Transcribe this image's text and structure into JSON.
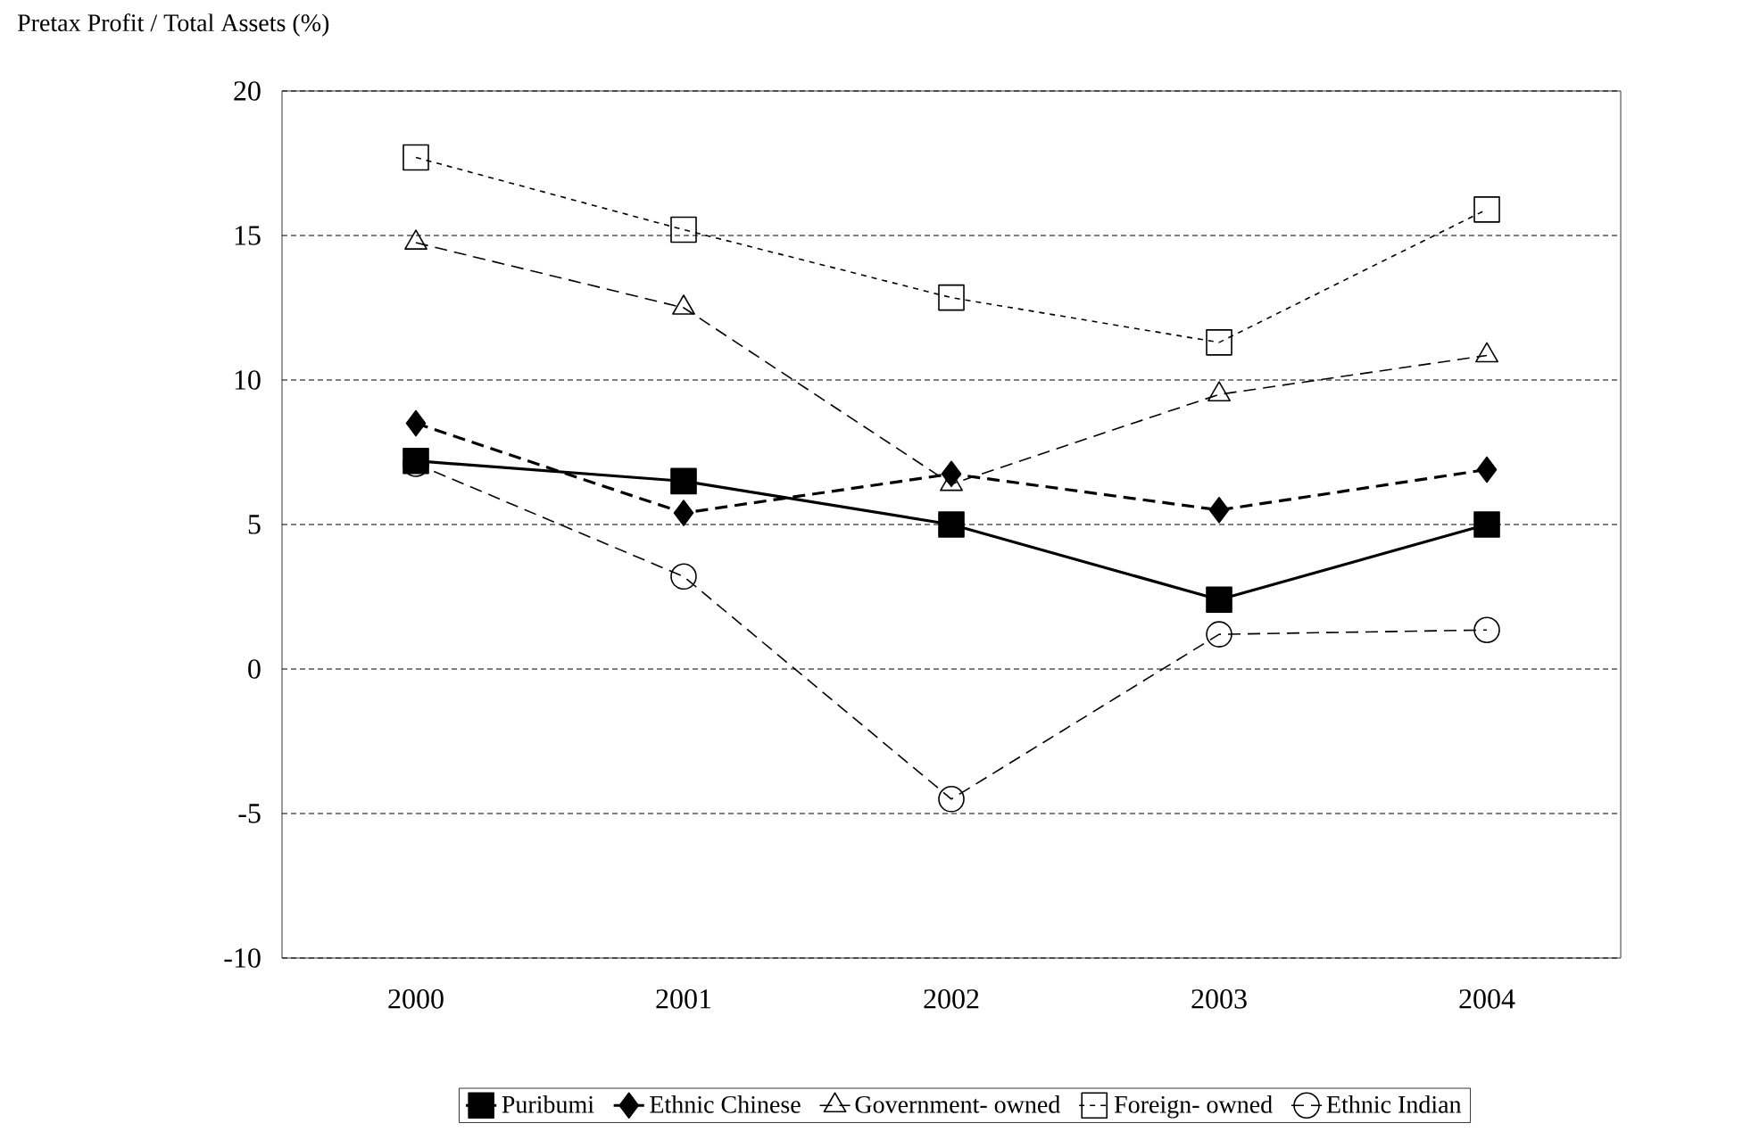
{
  "chart_data": {
    "type": "line",
    "ylabel": "Pretax Profit / Total Assets (%)",
    "categories": [
      "2000",
      "2001",
      "2002",
      "2003",
      "2004"
    ],
    "ylim": [
      -10,
      20
    ],
    "yticks": [
      -10,
      -5,
      0,
      5,
      10,
      15,
      20
    ],
    "grid": "y",
    "legend": "bottom",
    "series": [
      {
        "name": "Puribumi",
        "color": "#000000",
        "marker": "square",
        "line_style": "solid",
        "values": [
          7.2,
          6.5,
          5.0,
          2.4,
          5.0
        ]
      },
      {
        "name": "Ethnic Chinese",
        "color": "#000000",
        "marker": "diamond",
        "line_style": "dashed",
        "values": [
          8.5,
          5.4,
          6.75,
          5.5,
          6.9
        ]
      },
      {
        "name": "Government- owned",
        "color": "#000000",
        "marker": "triangle",
        "line_style": "dashed",
        "values": [
          14.75,
          12.5,
          6.4,
          9.5,
          10.85
        ]
      },
      {
        "name": "Foreign- owned",
        "color": "#000000",
        "marker": "square",
        "line_style": "dotted",
        "values": [
          17.7,
          15.2,
          12.85,
          11.3,
          15.9
        ]
      },
      {
        "name": "Ethnic Indian",
        "color": "#000000",
        "marker": "circle",
        "line_style": "dashed",
        "values": [
          7.1,
          3.2,
          -4.5,
          1.2,
          1.35
        ]
      }
    ]
  }
}
